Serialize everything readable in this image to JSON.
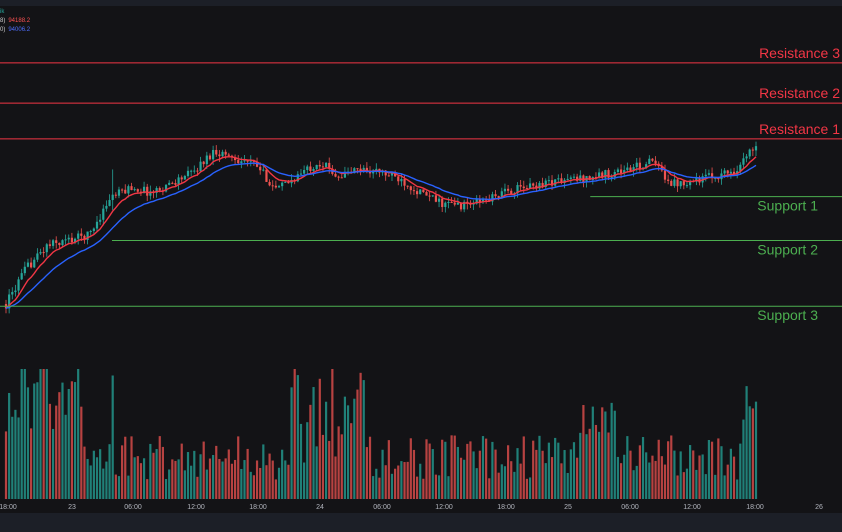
{
  "legend": {
    "symbol_fragment": "ik",
    "ma1_fragment": "8)",
    "ma1_value": "94188.2",
    "ma2_fragment": "0)",
    "ma2_value": "94006.2"
  },
  "chart_data": {
    "type": "candlestick",
    "ylim": [
      92000,
      97200
    ],
    "levels": [
      {
        "label": "Resistance 3",
        "price": 96750,
        "kind": "resistance",
        "start": "left"
      },
      {
        "label": "Resistance 2",
        "price": 96200,
        "kind": "resistance",
        "start": "left"
      },
      {
        "label": "Resistance 1",
        "price": 95710,
        "kind": "resistance",
        "start": "left"
      },
      {
        "label": "Support 1",
        "price": 94920,
        "kind": "support",
        "start": "Jan 25 ~02:00"
      },
      {
        "label": "Support 2",
        "price": 94320,
        "kind": "support",
        "start": "Jan 23 ~04:00"
      },
      {
        "label": "Support 3",
        "price": 93420,
        "kind": "support",
        "start": "left"
      }
    ],
    "price_path": [
      {
        "t": "Jan 22 18:00",
        "price": 93450
      },
      {
        "t": "Jan 22 20:00",
        "price": 93950
      },
      {
        "t": "Jan 22 22:00",
        "price": 94250
      },
      {
        "t": "Jan 23 02:00",
        "price": 94400
      },
      {
        "t": "Jan 23 04:00",
        "price": 94900
      },
      {
        "t": "Jan 23 06:00",
        "price": 95050
      },
      {
        "t": "Jan 23 08:00",
        "price": 94970
      },
      {
        "t": "Jan 23 12:00",
        "price": 95260
      },
      {
        "t": "Jan 23 14:00",
        "price": 95550
      },
      {
        "t": "Jan 23 16:00",
        "price": 95450
      },
      {
        "t": "Jan 23 18:00",
        "price": 95350
      },
      {
        "t": "Jan 23 20:00",
        "price": 95010
      },
      {
        "t": "Jan 24 00:00",
        "price": 95400
      },
      {
        "t": "Jan 24 02:00",
        "price": 95200
      },
      {
        "t": "Jan 24 04:00",
        "price": 95300
      },
      {
        "t": "Jan 24 06:00",
        "price": 95250
      },
      {
        "t": "Jan 24 08:00",
        "price": 95150
      },
      {
        "t": "Jan 24 10:00",
        "price": 94950
      },
      {
        "t": "Jan 24 12:00",
        "price": 94820
      },
      {
        "t": "Jan 24 14:00",
        "price": 94800
      },
      {
        "t": "Jan 24 16:00",
        "price": 94870
      },
      {
        "t": "Jan 24 18:00",
        "price": 94980
      },
      {
        "t": "Jan 24 22:00",
        "price": 95120
      },
      {
        "t": "Jan 25 02:00",
        "price": 95180
      },
      {
        "t": "Jan 25 06:00",
        "price": 95300
      },
      {
        "t": "Jan 25 08:00",
        "price": 95400
      },
      {
        "t": "Jan 25 10:00",
        "price": 95100
      },
      {
        "t": "Jan 25 12:00",
        "price": 95150
      },
      {
        "t": "Jan 25 14:00",
        "price": 95200
      },
      {
        "t": "Jan 25 16:00",
        "price": 95280
      },
      {
        "t": "Jan 25 17:00",
        "price": 95450
      },
      {
        "t": "Jan 25 18:00",
        "price": 95650
      }
    ],
    "x_ticks": [
      "18:00",
      "23",
      "06:00",
      "12:00",
      "18:00",
      "24",
      "06:00",
      "12:00",
      "18:00",
      "25",
      "06:00",
      "12:00",
      "18:00",
      "26"
    ],
    "colors": {
      "up": "#26a69a",
      "down": "#ef5350",
      "ma_fast": "#f23645",
      "ma_slow": "#2962ff",
      "resistance": "#f23645",
      "support": "#4caf50",
      "background": "#131316"
    },
    "grid": false
  }
}
